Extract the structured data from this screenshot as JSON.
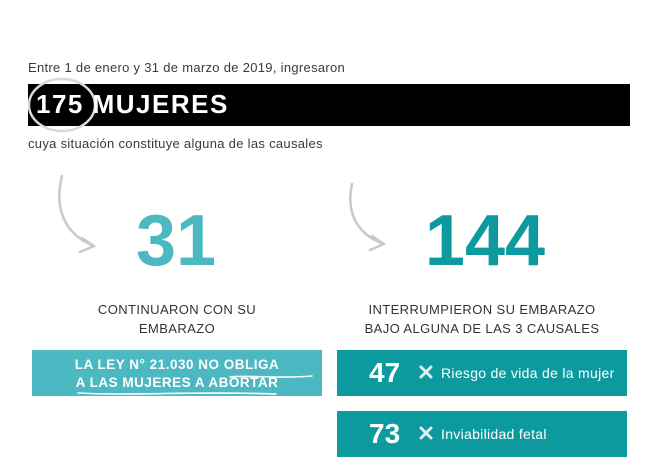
{
  "intro": "Entre 1 de enero y 31 de marzo de 2019, ingresaron",
  "headline": {
    "number": "175",
    "label": "MUJERES"
  },
  "subtitle": "cuya situación constituye alguna de las causales",
  "left": {
    "number": "31",
    "caption_line1": "CONTINUARON CON SU",
    "caption_line2": "EMBARAZO",
    "law_line1_a": "LA LEY N° 21.030 ",
    "law_line1_b": "NO OBLIGA",
    "law_line2": "A LAS MUJERES A ABORTAR"
  },
  "right": {
    "number": "144",
    "caption_line1": "INTERRUMPIERON SU EMBARAZO",
    "caption_line2": "BAJO ALGUNA DE LAS 3 CAUSALES"
  },
  "causales": [
    {
      "count": "47",
      "label": "Riesgo de vida de la mujer",
      "icon": "cross-icon"
    },
    {
      "count": "73",
      "label": "Inviabilidad fetal",
      "icon": "cross-icon"
    }
  ],
  "colors": {
    "light_teal": "#4bb8c2",
    "dark_teal": "#0d9a9f",
    "bar_black": "#000000"
  }
}
